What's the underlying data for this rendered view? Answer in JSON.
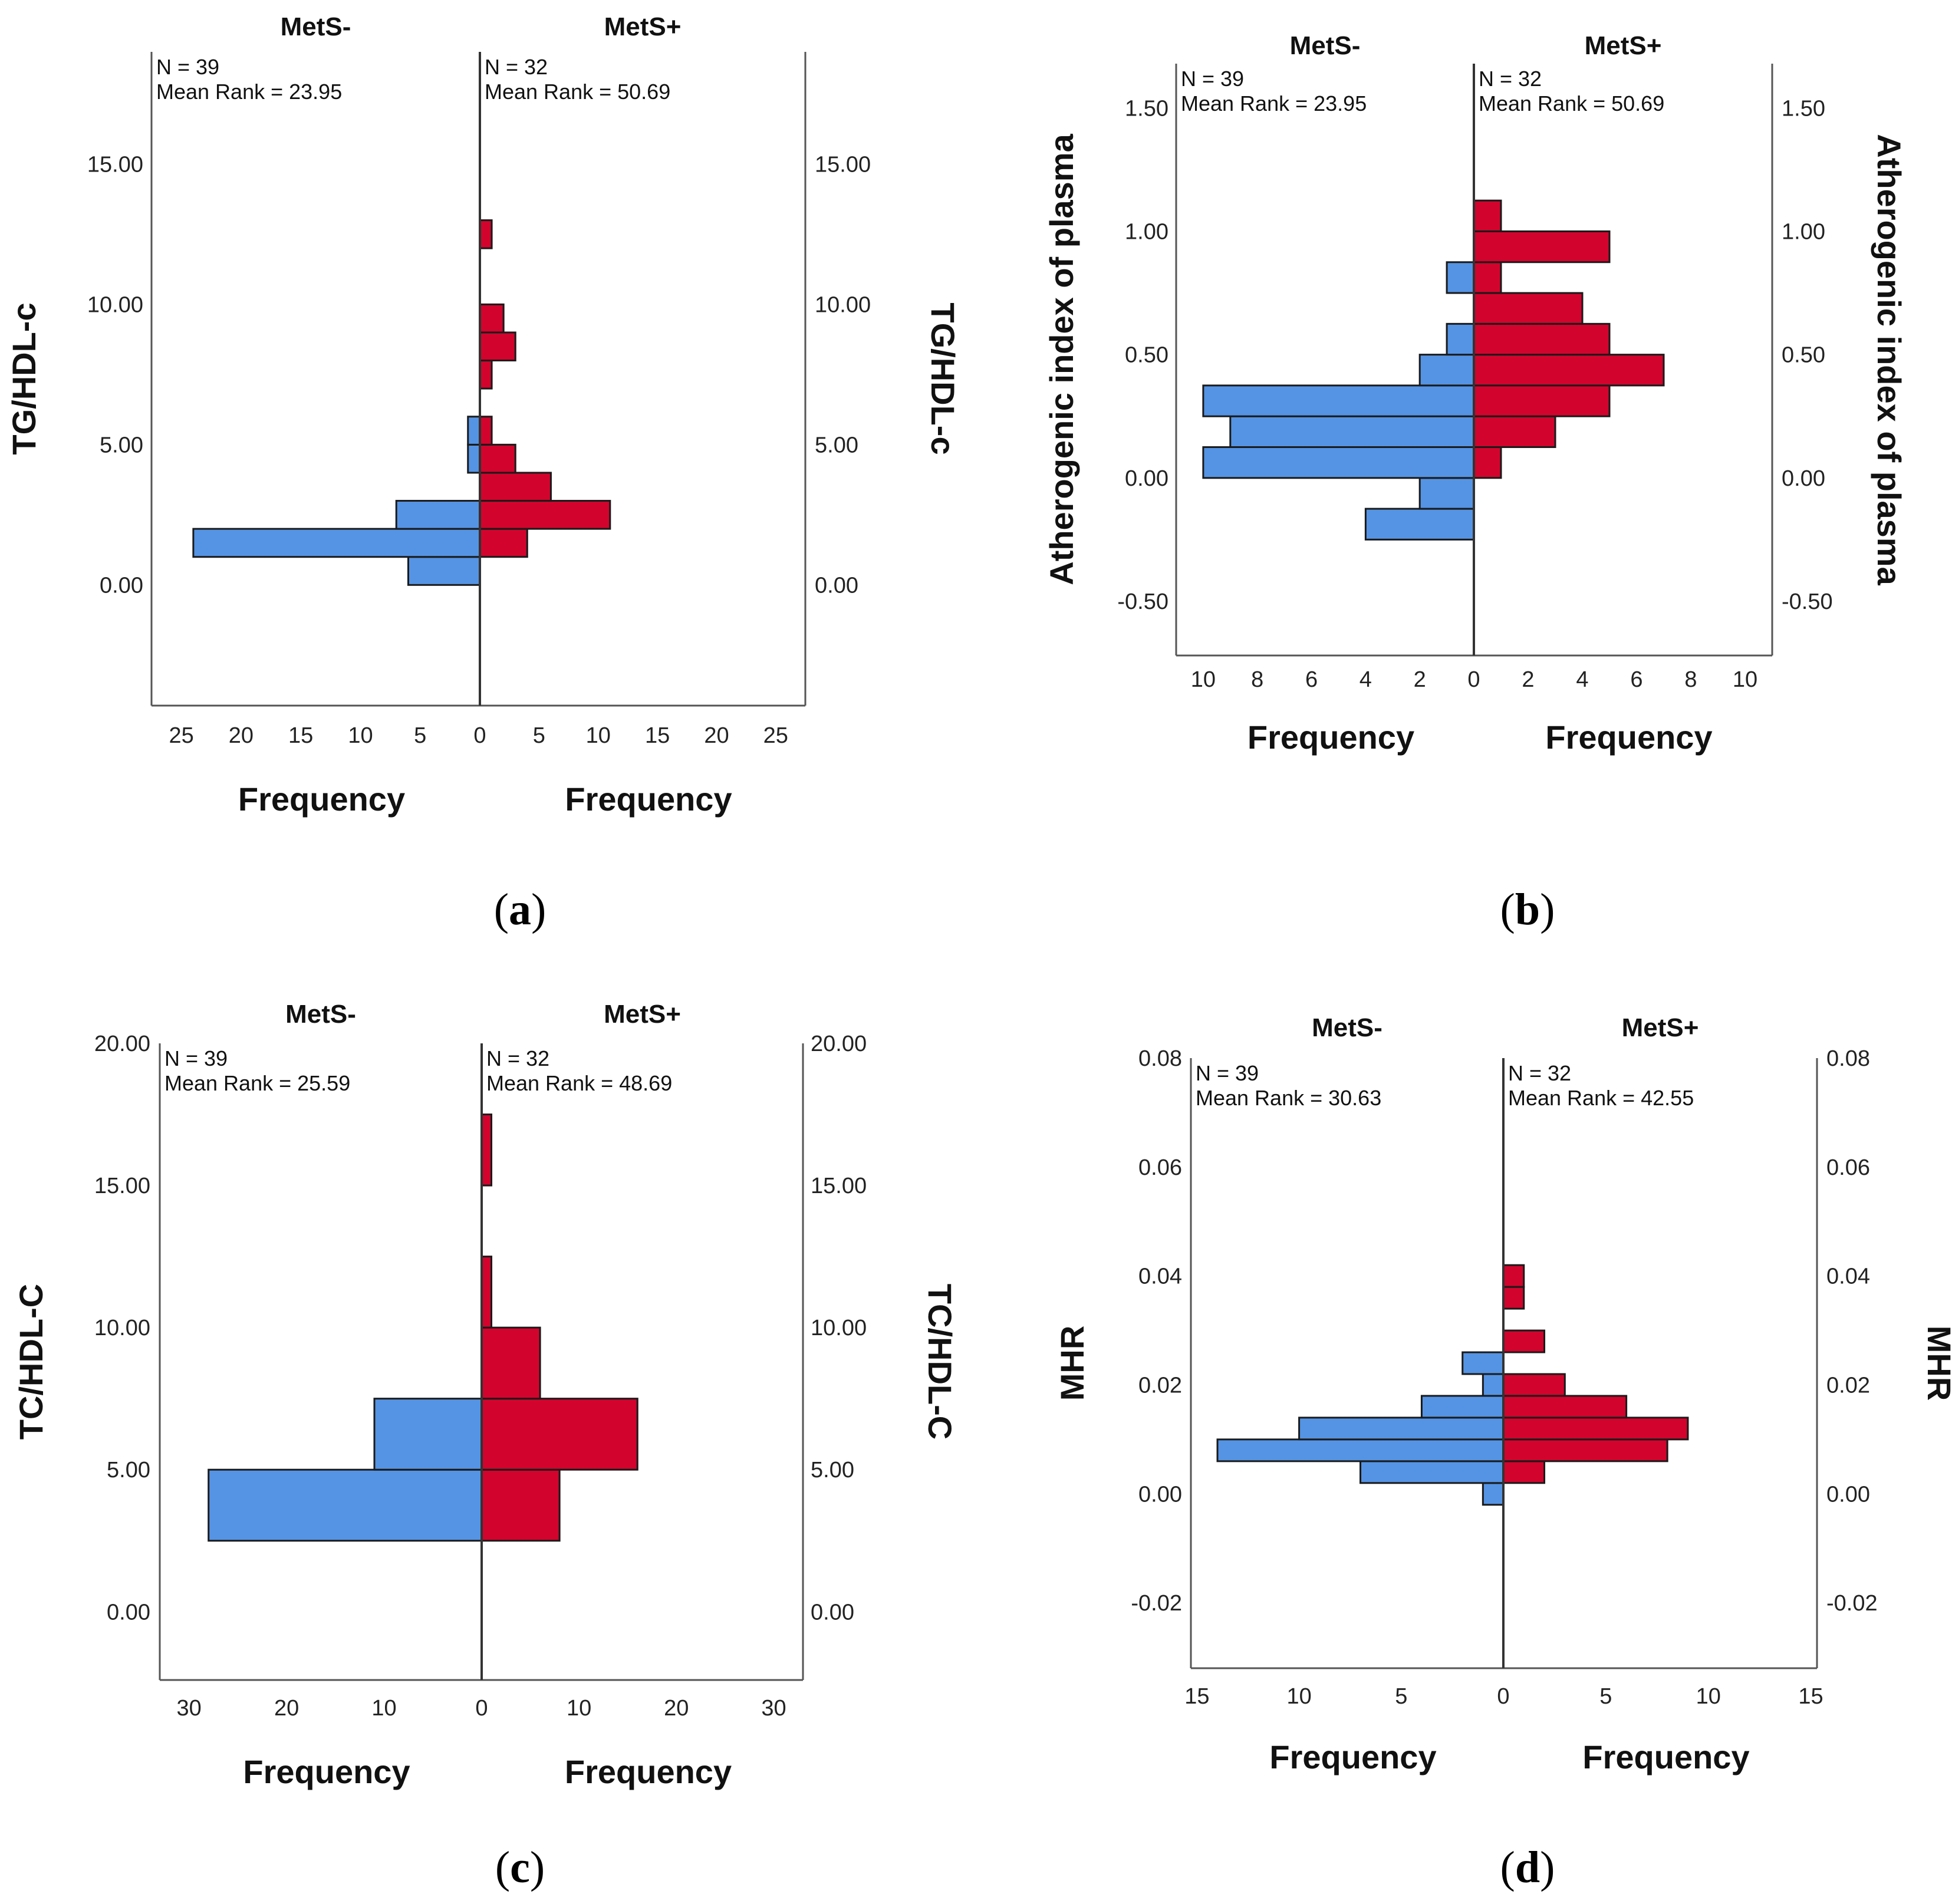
{
  "colors": {
    "mets_minus": "#5594e4",
    "mets_plus": "#d2042d",
    "outline": "#1a1a1a",
    "frame": "#555555"
  },
  "chart_data": [
    {
      "panel": "a",
      "caption": "a",
      "type": "population-pyramid-histogram",
      "group_left": "MetS-",
      "group_right": "MetS+",
      "left_stats": {
        "n": "N = 39",
        "mean_rank": "Mean Rank = 23.95"
      },
      "right_stats": {
        "n": "N = 32",
        "mean_rank": "Mean Rank = 50.69"
      },
      "ylabel": "TG/HDL-c",
      "xlabel": "Frequency",
      "ylim": [
        -4.3,
        19.0
      ],
      "yticks": [
        0,
        5,
        10,
        15
      ],
      "ytick_labels": [
        "0.00",
        "5.00",
        "10.00",
        "15.00"
      ],
      "xmax": 27.5,
      "xticks": [
        25,
        20,
        15,
        10,
        5,
        0
      ],
      "bin_width": 1.0,
      "left_bins": [
        {
          "lo": 0,
          "hi": 1,
          "count": 6
        },
        {
          "lo": 1,
          "hi": 2,
          "count": 24
        },
        {
          "lo": 2,
          "hi": 3,
          "count": 7
        },
        {
          "lo": 4,
          "hi": 5,
          "count": 1
        },
        {
          "lo": 5,
          "hi": 6,
          "count": 1
        }
      ],
      "right_bins": [
        {
          "lo": 1,
          "hi": 2,
          "count": 4
        },
        {
          "lo": 2,
          "hi": 3,
          "count": 11
        },
        {
          "lo": 3,
          "hi": 4,
          "count": 6
        },
        {
          "lo": 4,
          "hi": 5,
          "count": 3
        },
        {
          "lo": 5,
          "hi": 6,
          "count": 1
        },
        {
          "lo": 7,
          "hi": 8,
          "count": 1
        },
        {
          "lo": 8,
          "hi": 9,
          "count": 3
        },
        {
          "lo": 9,
          "hi": 10,
          "count": 2
        },
        {
          "lo": 12,
          "hi": 13,
          "count": 1
        }
      ]
    },
    {
      "panel": "b",
      "caption": "b",
      "type": "population-pyramid-histogram",
      "group_left": "MetS-",
      "group_right": "MetS+",
      "left_stats": {
        "n": "N = 39",
        "mean_rank": "Mean Rank = 23.95"
      },
      "right_stats": {
        "n": "N = 32",
        "mean_rank": "Mean Rank = 50.69"
      },
      "ylabel": "Atherogenic index of plasma",
      "xlabel": "Frequency",
      "ylim": [
        -0.72,
        1.68
      ],
      "yticks": [
        -0.5,
        0,
        0.5,
        1.0,
        1.5
      ],
      "ytick_labels": [
        "-0.50",
        "0.00",
        "0.50",
        "1.00",
        "1.50"
      ],
      "xmax": 11,
      "xticks": [
        10,
        8,
        6,
        4,
        2,
        0
      ],
      "bin_width": 0.125,
      "left_bins": [
        {
          "lo": -0.25,
          "hi": -0.125,
          "count": 4
        },
        {
          "lo": -0.125,
          "hi": 0.0,
          "count": 2
        },
        {
          "lo": 0.0,
          "hi": 0.125,
          "count": 10
        },
        {
          "lo": 0.125,
          "hi": 0.25,
          "count": 9
        },
        {
          "lo": 0.25,
          "hi": 0.375,
          "count": 10
        },
        {
          "lo": 0.375,
          "hi": 0.5,
          "count": 2
        },
        {
          "lo": 0.5,
          "hi": 0.625,
          "count": 1
        },
        {
          "lo": 0.75,
          "hi": 0.875,
          "count": 1
        }
      ],
      "right_bins": [
        {
          "lo": 0.0,
          "hi": 0.125,
          "count": 1
        },
        {
          "lo": 0.125,
          "hi": 0.25,
          "count": 3
        },
        {
          "lo": 0.25,
          "hi": 0.375,
          "count": 5
        },
        {
          "lo": 0.375,
          "hi": 0.5,
          "count": 7
        },
        {
          "lo": 0.5,
          "hi": 0.625,
          "count": 5
        },
        {
          "lo": 0.625,
          "hi": 0.75,
          "count": 4
        },
        {
          "lo": 0.75,
          "hi": 0.875,
          "count": 1
        },
        {
          "lo": 0.875,
          "hi": 1.0,
          "count": 5
        },
        {
          "lo": 1.0,
          "hi": 1.125,
          "count": 1
        }
      ]
    },
    {
      "panel": "c",
      "caption": "c",
      "type": "population-pyramid-histogram",
      "group_left": "MetS-",
      "group_right": "MetS+",
      "left_stats": {
        "n": "N = 39",
        "mean_rank": "Mean Rank = 25.59"
      },
      "right_stats": {
        "n": "N = 32",
        "mean_rank": "Mean Rank = 48.69"
      },
      "ylabel": "TC/HDL-C",
      "xlabel": "Frequency",
      "ylim": [
        -2.4,
        20.0
      ],
      "yticks": [
        0,
        5,
        10,
        15,
        20
      ],
      "ytick_labels": [
        "0.00",
        "5.00",
        "10.00",
        "15.00",
        "20.00"
      ],
      "xmax": 33,
      "xticks": [
        30,
        20,
        10,
        0
      ],
      "bin_width": 2.5,
      "left_bins": [
        {
          "lo": 2.5,
          "hi": 5.0,
          "count": 28
        },
        {
          "lo": 5.0,
          "hi": 7.5,
          "count": 11
        }
      ],
      "right_bins": [
        {
          "lo": 2.5,
          "hi": 5.0,
          "count": 8
        },
        {
          "lo": 5.0,
          "hi": 7.5,
          "count": 16
        },
        {
          "lo": 7.5,
          "hi": 10.0,
          "count": 6
        },
        {
          "lo": 10.0,
          "hi": 12.5,
          "count": 1
        },
        {
          "lo": 15.0,
          "hi": 17.5,
          "count": 1
        }
      ]
    },
    {
      "panel": "d",
      "caption": "d",
      "type": "population-pyramid-histogram",
      "group_left": "MetS-",
      "group_right": "MetS+",
      "left_stats": {
        "n": "N = 39",
        "mean_rank": "Mean Rank = 30.63"
      },
      "right_stats": {
        "n": "N = 32",
        "mean_rank": "Mean Rank = 42.55"
      },
      "ylabel": "MHR",
      "xlabel": "Frequency",
      "ylim": [
        -0.032,
        0.08
      ],
      "yticks": [
        -0.02,
        0,
        0.02,
        0.04,
        0.06,
        0.08
      ],
      "ytick_labels": [
        "-0.02",
        "0.00",
        "0.02",
        "0.04",
        "0.06",
        "0.08"
      ],
      "xmax": 15.3,
      "xticks": [
        15,
        10,
        5,
        0
      ],
      "bin_width": 0.004,
      "left_bins": [
        {
          "lo": -0.002,
          "hi": 0.002,
          "count": 1
        },
        {
          "lo": 0.002,
          "hi": 0.006,
          "count": 7
        },
        {
          "lo": 0.006,
          "hi": 0.01,
          "count": 14
        },
        {
          "lo": 0.01,
          "hi": 0.014,
          "count": 10
        },
        {
          "lo": 0.014,
          "hi": 0.018,
          "count": 4
        },
        {
          "lo": 0.018,
          "hi": 0.022,
          "count": 1
        },
        {
          "lo": 0.022,
          "hi": 0.026,
          "count": 2
        }
      ],
      "right_bins": [
        {
          "lo": 0.002,
          "hi": 0.006,
          "count": 2
        },
        {
          "lo": 0.006,
          "hi": 0.01,
          "count": 8
        },
        {
          "lo": 0.01,
          "hi": 0.014,
          "count": 9
        },
        {
          "lo": 0.014,
          "hi": 0.018,
          "count": 6
        },
        {
          "lo": 0.018,
          "hi": 0.022,
          "count": 3
        },
        {
          "lo": 0.026,
          "hi": 0.03,
          "count": 2
        },
        {
          "lo": 0.034,
          "hi": 0.038,
          "count": 1
        },
        {
          "lo": 0.038,
          "hi": 0.042,
          "count": 1
        }
      ]
    }
  ]
}
